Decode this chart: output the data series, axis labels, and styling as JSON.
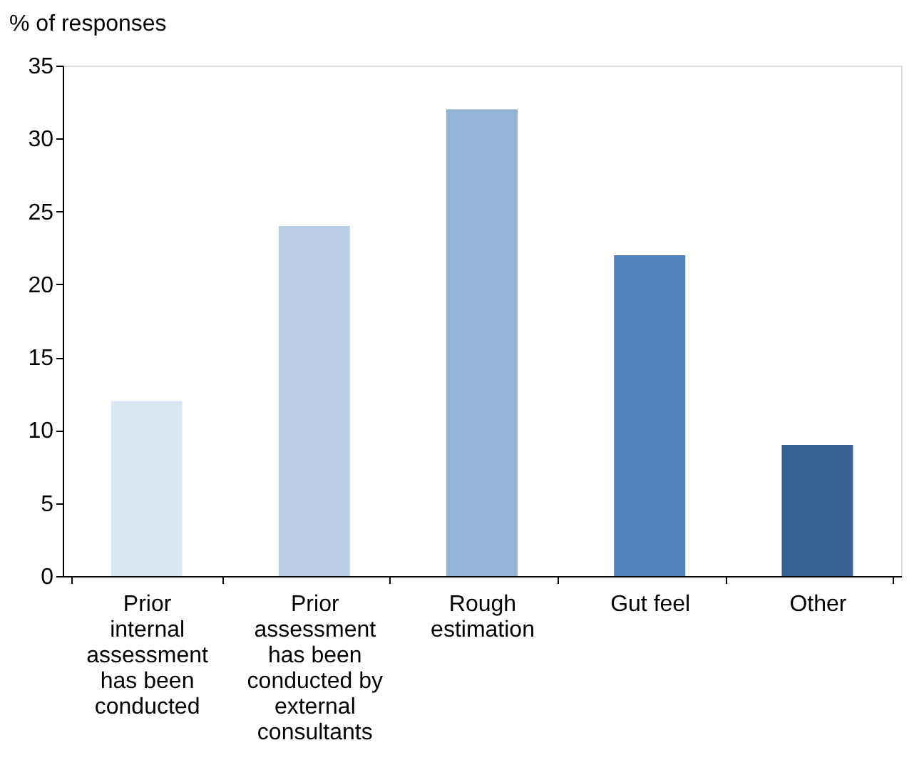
{
  "chart_data": {
    "type": "bar",
    "ylabel": "% of responses",
    "categories": [
      "Prior internal assessment has been conducted",
      "Prior assessment has been conducted by external consultants",
      "Rough estimation",
      "Gut feel",
      "Other"
    ],
    "values": [
      12,
      24,
      32,
      22,
      9
    ],
    "colors": [
      "#dce6f2",
      "#b9cde5",
      "#95b3d7",
      "#4f81bd",
      "#376092"
    ],
    "ylim": [
      0,
      35
    ],
    "yticks": [
      0,
      5,
      10,
      15,
      20,
      25,
      30,
      35
    ],
    "grid": false
  }
}
